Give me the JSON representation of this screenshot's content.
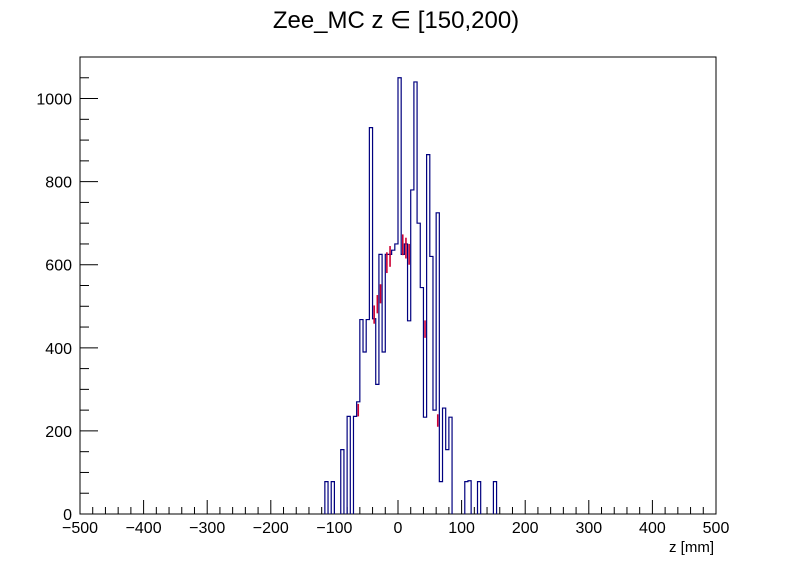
{
  "chart_data": {
    "type": "histogram",
    "title": "Zee_MC z ∈ [150,200)",
    "xlabel": "z [mm]",
    "ylabel": "",
    "xlim": [
      -500,
      500
    ],
    "ylim": [
      0,
      1100
    ],
    "bin_width": 5,
    "x_ticks": [
      -500,
      -400,
      -300,
      -200,
      -100,
      0,
      100,
      200,
      300,
      400,
      500
    ],
    "x_tick_labels": [
      "−500",
      "−400",
      "−300",
      "−200",
      "−100",
      "0",
      "100",
      "200",
      "300",
      "400",
      "500"
    ],
    "y_ticks": [
      0,
      200,
      400,
      600,
      800,
      1000
    ],
    "y_tick_labels": [
      "0",
      "200",
      "400",
      "600",
      "800",
      "1000"
    ],
    "grid": false,
    "colors": {
      "histogram_line": "#00007f",
      "error_bar": "#cc0033",
      "frame": "#000000"
    },
    "series": [
      {
        "bins": [
          {
            "low": -115,
            "high": -110,
            "value": 78
          },
          {
            "low": -105,
            "high": -100,
            "value": 78
          },
          {
            "low": -90,
            "high": -85,
            "value": 155
          },
          {
            "low": -80,
            "high": -75,
            "value": 235
          },
          {
            "low": -70,
            "high": -65,
            "value": 235
          },
          {
            "low": -65,
            "high": -60,
            "value": 270
          },
          {
            "low": -60,
            "high": -55,
            "value": 468
          },
          {
            "low": -55,
            "high": -50,
            "value": 390
          },
          {
            "low": -50,
            "high": -45,
            "value": 468
          },
          {
            "low": -45,
            "high": -40,
            "value": 930
          },
          {
            "low": -40,
            "high": -35,
            "value": 470
          },
          {
            "low": -35,
            "high": -30,
            "value": 312
          },
          {
            "low": -30,
            "high": -25,
            "value": 625
          },
          {
            "low": -25,
            "high": -20,
            "value": 390
          },
          {
            "low": -20,
            "high": -15,
            "value": 625
          },
          {
            "low": -15,
            "high": -10,
            "value": 625
          },
          {
            "low": -10,
            "high": -5,
            "value": 635
          },
          {
            "low": -5,
            "high": 0,
            "value": 650
          },
          {
            "low": 0,
            "high": 5,
            "value": 1050
          },
          {
            "low": 5,
            "high": 10,
            "value": 625
          },
          {
            "low": 10,
            "high": 15,
            "value": 650
          },
          {
            "low": 15,
            "high": 20,
            "value": 465
          },
          {
            "low": 20,
            "high": 25,
            "value": 780
          },
          {
            "low": 25,
            "high": 30,
            "value": 1040
          },
          {
            "low": 30,
            "high": 35,
            "value": 700
          },
          {
            "low": 35,
            "high": 40,
            "value": 545
          },
          {
            "low": 40,
            "high": 45,
            "value": 233
          },
          {
            "low": 45,
            "high": 50,
            "value": 865
          },
          {
            "low": 50,
            "high": 55,
            "value": 620
          },
          {
            "low": 55,
            "high": 60,
            "value": 250
          },
          {
            "low": 60,
            "high": 65,
            "value": 725
          },
          {
            "low": 65,
            "high": 70,
            "value": 78
          },
          {
            "low": 70,
            "high": 75,
            "value": 255
          },
          {
            "low": 75,
            "high": 80,
            "value": 155
          },
          {
            "low": 80,
            "high": 85,
            "value": 233
          },
          {
            "low": 105,
            "high": 110,
            "value": 78
          },
          {
            "low": 110,
            "high": 115,
            "value": 80
          },
          {
            "low": 125,
            "high": 130,
            "value": 78
          },
          {
            "low": 150,
            "high": 155,
            "value": 78
          }
        ],
        "error_bars": [
          {
            "x": -62.5,
            "value": 250,
            "err": 15
          },
          {
            "x": -37.5,
            "value": 480,
            "err": 22
          },
          {
            "x": -32.5,
            "value": 505,
            "err": 22
          },
          {
            "x": -27.5,
            "value": 530,
            "err": 23
          },
          {
            "x": -17.5,
            "value": 605,
            "err": 25
          },
          {
            "x": -12.5,
            "value": 620,
            "err": 25
          },
          {
            "x": 7.5,
            "value": 648,
            "err": 25
          },
          {
            "x": 12.5,
            "value": 640,
            "err": 25
          },
          {
            "x": 17.5,
            "value": 625,
            "err": 25
          },
          {
            "x": 42.5,
            "value": 445,
            "err": 21
          },
          {
            "x": 62.5,
            "value": 225,
            "err": 15
          }
        ]
      }
    ]
  }
}
